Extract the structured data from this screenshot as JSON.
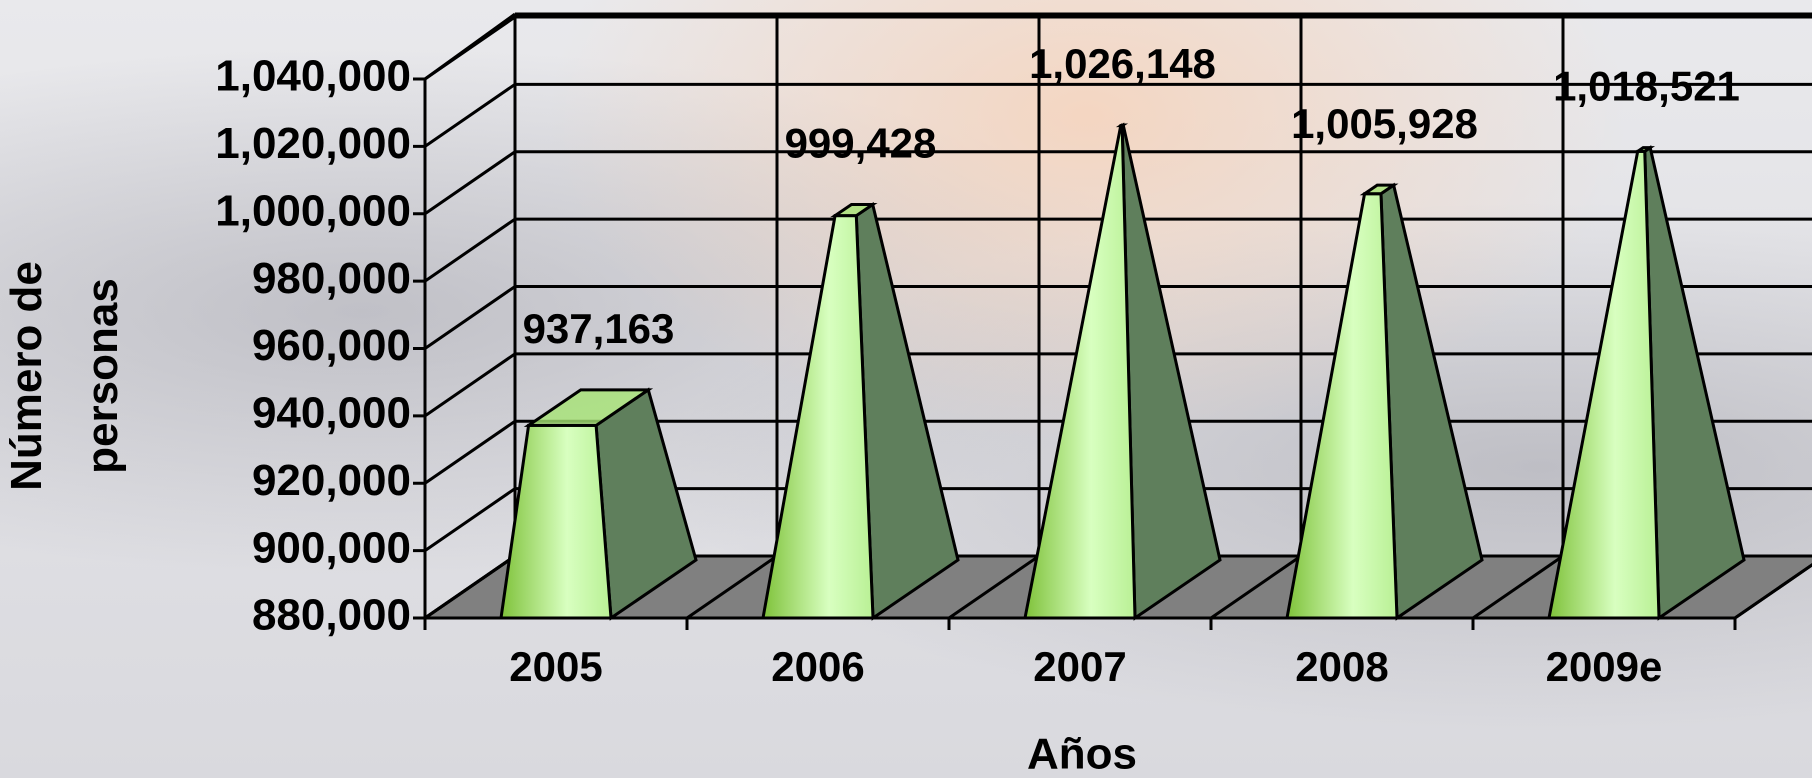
{
  "chart_data": {
    "type": "pyramid",
    "y_label": "Número de personas",
    "x_label": "Años",
    "categories": [
      "2005",
      "2006",
      "2007",
      "2008",
      "2009e"
    ],
    "values": [
      937163,
      999428,
      1026148,
      1005928,
      1018521
    ],
    "value_labels": [
      "937,163",
      "999,428",
      "1,026,148",
      "1,005,928",
      "1,018,521"
    ],
    "color": "#a6e374",
    "ylim": [
      880000,
      1040000
    ],
    "yticks": [
      {
        "value": 880000,
        "label": "880,000"
      },
      {
        "value": 900000,
        "label": "900,000"
      },
      {
        "value": 920000,
        "label": "920,000"
      },
      {
        "value": 940000,
        "label": "940,000"
      },
      {
        "value": 960000,
        "label": "960,000"
      },
      {
        "value": 980000,
        "label": "980,000"
      },
      {
        "value": 1000000,
        "label": "1,000,000"
      },
      {
        "value": 1020000,
        "label": "1,020,000"
      },
      {
        "value": 1040000,
        "label": "1,040,000"
      }
    ],
    "grid": true
  }
}
